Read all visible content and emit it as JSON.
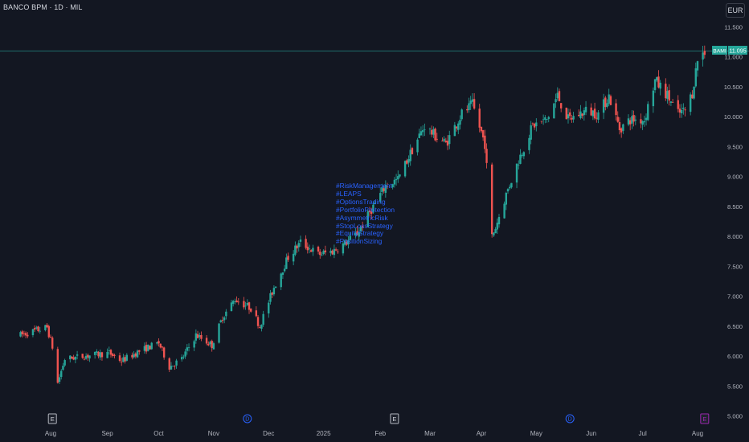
{
  "header": {
    "symbol_title": "BANCO BPM · 1D · MIL",
    "currency_button": "EUR"
  },
  "annotations": [
    "#RiskManagement",
    "#LEAPS",
    "#OptionsTrading",
    "#PortfolioProtection",
    "#AsymmetricRisk",
    "#StopLossStrategy",
    "#EquityStrategy",
    "#PositionSizing"
  ],
  "price_badge": {
    "ticker": "BAMI",
    "price": "11.095"
  },
  "event_markers": [
    {
      "label": "E",
      "date": "2024-08-02",
      "kind": "earnings"
    },
    {
      "label": "D",
      "date": "2024-11-20",
      "kind": "dividend"
    },
    {
      "label": "E",
      "date": "2025-02-11",
      "kind": "earnings"
    },
    {
      "label": "D",
      "date": "2025-05-21",
      "kind": "dividend"
    },
    {
      "label": "E",
      "date": "2025-08-05",
      "kind": "earnings"
    }
  ],
  "colors": {
    "background": "#131722",
    "up": "#26a69a",
    "down": "#ef5350",
    "price_line": "#26a69a",
    "annotation": "#2962ff",
    "dividend": "#2962ff",
    "earnings_current": "#9c27b0"
  },
  "chart_data": {
    "type": "candlestick",
    "title": "BANCO BPM · 1D · MIL",
    "y_unit": "EUR",
    "ylim": [
      5.0,
      11.6
    ],
    "y_ticks": [
      "11.500",
      "11.000",
      "10.500",
      "10.000",
      "9.500",
      "9.000",
      "8.500",
      "8.000",
      "7.500",
      "7.000",
      "6.500",
      "6.000",
      "5.500",
      "5.000"
    ],
    "x_ticks": [
      {
        "label": "Aug",
        "date": "2024-08-01"
      },
      {
        "label": "Sep",
        "date": "2024-09-02"
      },
      {
        "label": "Oct",
        "date": "2024-10-01"
      },
      {
        "label": "Nov",
        "date": "2024-11-01"
      },
      {
        "label": "Dec",
        "date": "2024-12-02"
      },
      {
        "label": "2025",
        "date": "2025-01-02"
      },
      {
        "label": "Feb",
        "date": "2025-02-03"
      },
      {
        "label": "Mar",
        "date": "2025-03-03"
      },
      {
        "label": "Apr",
        "date": "2025-04-01"
      },
      {
        "label": "May",
        "date": "2025-05-02"
      },
      {
        "label": "Jun",
        "date": "2025-06-02"
      },
      {
        "label": "Jul",
        "date": "2025-07-01"
      },
      {
        "label": "Aug",
        "date": "2025-08-01"
      }
    ],
    "grid": false,
    "last_price": 11.095,
    "trend_keypoints": [
      [
        "2024-07-15",
        6.35
      ],
      [
        "2024-07-30",
        6.48
      ],
      [
        "2024-08-02",
        6.15
      ],
      [
        "2024-08-05",
        5.55
      ],
      [
        "2024-08-09",
        5.95
      ],
      [
        "2024-08-20",
        6.0
      ],
      [
        "2024-09-03",
        6.05
      ],
      [
        "2024-09-10",
        5.92
      ],
      [
        "2024-09-20",
        6.08
      ],
      [
        "2024-10-01",
        6.22
      ],
      [
        "2024-10-07",
        5.82
      ],
      [
        "2024-10-14",
        5.95
      ],
      [
        "2024-10-22",
        6.35
      ],
      [
        "2024-10-31",
        6.18
      ],
      [
        "2024-11-06",
        6.65
      ],
      [
        "2024-11-13",
        6.95
      ],
      [
        "2024-11-22",
        6.8
      ],
      [
        "2024-11-27",
        6.5
      ],
      [
        "2024-12-05",
        7.15
      ],
      [
        "2024-12-13",
        7.65
      ],
      [
        "2024-12-20",
        7.9
      ],
      [
        "2024-12-30",
        7.7
      ],
      [
        "2025-01-07",
        7.75
      ],
      [
        "2025-01-14",
        7.88
      ],
      [
        "2025-01-21",
        8.05
      ],
      [
        "2025-01-31",
        8.55
      ],
      [
        "2025-02-06",
        8.85
      ],
      [
        "2025-02-13",
        8.95
      ],
      [
        "2025-02-21",
        9.45
      ],
      [
        "2025-02-28",
        9.85
      ],
      [
        "2025-03-05",
        9.7
      ],
      [
        "2025-03-12",
        9.55
      ],
      [
        "2025-03-21",
        10.05
      ],
      [
        "2025-03-27",
        10.2
      ],
      [
        "2025-04-03",
        9.55
      ],
      [
        "2025-04-07",
        8.0
      ],
      [
        "2025-04-09",
        8.15
      ],
      [
        "2025-04-15",
        8.7
      ],
      [
        "2025-04-23",
        9.35
      ],
      [
        "2025-04-30",
        9.85
      ],
      [
        "2025-05-08",
        9.95
      ],
      [
        "2025-05-14",
        10.35
      ],
      [
        "2025-05-20",
        9.95
      ],
      [
        "2025-05-30",
        10.1
      ],
      [
        "2025-06-06",
        10.05
      ],
      [
        "2025-06-12",
        10.35
      ],
      [
        "2025-06-18",
        9.8
      ],
      [
        "2025-06-24",
        9.95
      ],
      [
        "2025-07-02",
        9.95
      ],
      [
        "2025-07-08",
        10.6
      ],
      [
        "2025-07-14",
        10.4
      ],
      [
        "2025-07-21",
        10.05
      ],
      [
        "2025-07-25",
        10.1
      ],
      [
        "2025-07-29",
        10.4
      ],
      [
        "2025-08-01",
        10.95
      ],
      [
        "2025-08-05",
        11.1
      ]
    ]
  }
}
